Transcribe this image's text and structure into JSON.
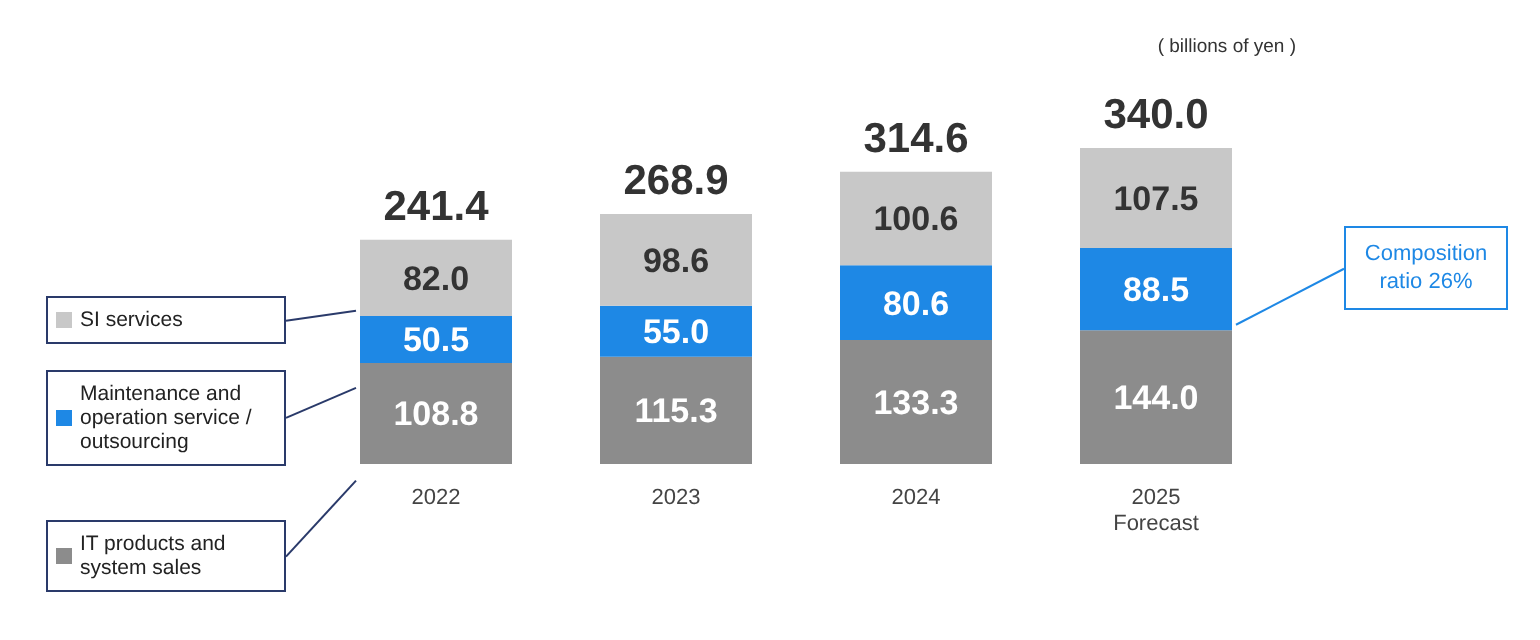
{
  "chart_data": {
    "type": "bar",
    "stacked": true,
    "legend": "left",
    "categories": [
      "2022",
      "2023",
      "2024",
      "2025\nForecast"
    ],
    "series": [
      {
        "name": "IT products and system sales",
        "color": "#8c8c8c",
        "values": [
          108.8,
          115.3,
          133.3,
          144.0
        ],
        "value_labels": [
          "108.8",
          "115.3",
          "133.3",
          "144.0"
        ]
      },
      {
        "name": "Maintenance and operation service / outsourcing",
        "color": "#1e88e5",
        "values": [
          50.5,
          55.0,
          80.6,
          88.5
        ],
        "value_labels": [
          "50.5",
          "55.0",
          "80.6",
          "88.5"
        ]
      },
      {
        "name": "SI services",
        "color": "#c8c8c8",
        "values": [
          82.0,
          98.6,
          100.6,
          107.5
        ],
        "value_labels": [
          "82.0",
          "98.6",
          "100.6",
          "107.5"
        ]
      }
    ],
    "totals": [
      "241.4",
      "268.9",
      "314.6",
      "340.0"
    ],
    "annotations": [
      "( billions of yen )",
      "Composition ratio 26%"
    ]
  }
}
